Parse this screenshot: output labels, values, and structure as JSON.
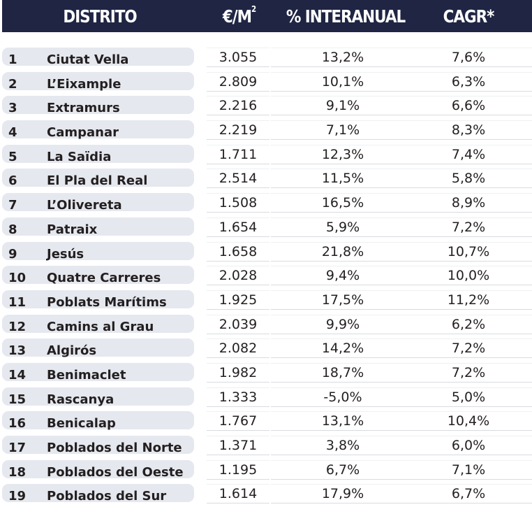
{
  "header": {
    "distrito": "DISTRITO",
    "price": "€/M",
    "price_sup": "2",
    "interanual": "% INTERANUAL",
    "cagr": "CAGR*"
  },
  "rows": [
    {
      "num": "1",
      "name": "Ciutat Vella",
      "price": "3.055",
      "pct": "13,2%",
      "cagr": "7,6%"
    },
    {
      "num": "2",
      "name": "L’Eixample",
      "price": "2.809",
      "pct": "10,1%",
      "cagr": "6,3%"
    },
    {
      "num": "3",
      "name": "Extramurs",
      "price": "2.216",
      "pct": "9,1%",
      "cagr": "6,6%"
    },
    {
      "num": "4",
      "name": "Campanar",
      "price": "2.219",
      "pct": "7,1%",
      "cagr": "8,3%"
    },
    {
      "num": "5",
      "name": "La Saïdia",
      "price": "1.711",
      "pct": "12,3%",
      "cagr": "7,4%"
    },
    {
      "num": "6",
      "name": "El Pla del Real",
      "price": "2.514",
      "pct": "11,5%",
      "cagr": "5,8%"
    },
    {
      "num": "7",
      "name": "L’Olivereta",
      "price": "1.508",
      "pct": "16,5%",
      "cagr": "8,9%"
    },
    {
      "num": "8",
      "name": "Patraix",
      "price": "1.654",
      "pct": "5,9%",
      "cagr": "7,2%"
    },
    {
      "num": "9",
      "name": "Jesús",
      "price": "1.658",
      "pct": "21,8%",
      "cagr": "10,7%"
    },
    {
      "num": "10",
      "name": "Quatre Carreres",
      "price": "2.028",
      "pct": "9,4%",
      "cagr": "10,0%"
    },
    {
      "num": "11",
      "name": "Poblats Marítims",
      "price": "1.925",
      "pct": "17,5%",
      "cagr": "11,2%"
    },
    {
      "num": "12",
      "name": "Camins al Grau",
      "price": "2.039",
      "pct": "9,9%",
      "cagr": "6,2%"
    },
    {
      "num": "13",
      "name": "Algirós",
      "price": "2.082",
      "pct": "14,2%",
      "cagr": "7,2%"
    },
    {
      "num": "14",
      "name": "Benimaclet",
      "price": "1.982",
      "pct": "18,7%",
      "cagr": "7,2%"
    },
    {
      "num": "15",
      "name": "Rascanya",
      "price": "1.333",
      "pct": "-5,0%",
      "cagr": "5,0%"
    },
    {
      "num": "16",
      "name": "Benicalap",
      "price": "1.767",
      "pct": "13,1%",
      "cagr": "10,4%"
    },
    {
      "num": "17",
      "name": "Poblados del Norte",
      "price": "1.371",
      "pct": "3,8%",
      "cagr": "6,0%"
    },
    {
      "num": "18",
      "name": "Poblados del Oeste",
      "price": "1.195",
      "pct": "6,7%",
      "cagr": "7,1%"
    },
    {
      "num": "19",
      "name": "Poblados del Sur",
      "price": "1.614",
      "pct": "17,9%",
      "cagr": "6,7%"
    }
  ]
}
